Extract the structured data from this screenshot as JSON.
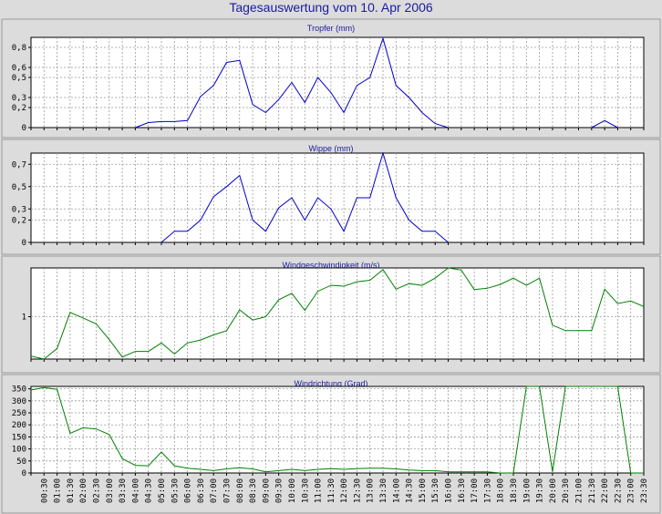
{
  "title": "Tagesauswertung vom 10. Apr 2006",
  "chart_data": [
    {
      "type": "line",
      "title": "Tropfer (mm)",
      "color": "#0000cc",
      "ylim": [
        0,
        0.9
      ],
      "yticks": [
        0,
        0.2,
        0.3,
        0.5,
        0.6,
        0.8
      ],
      "ytick_labels": [
        "0",
        "0,2",
        "0,3",
        "0,5",
        "0,6",
        "0,8"
      ],
      "x": [
        "00:00",
        "00:30",
        "01:00",
        "01:30",
        "02:00",
        "02:30",
        "03:00",
        "03:30",
        "04:00",
        "04:30",
        "05:00",
        "05:30",
        "06:00",
        "06:30",
        "07:00",
        "07:30",
        "08:00",
        "08:30",
        "09:00",
        "09:30",
        "10:00",
        "10:30",
        "11:00",
        "11:30",
        "12:00",
        "12:30",
        "13:00",
        "13:30",
        "14:00",
        "14:30",
        "15:00",
        "15:30",
        "16:00",
        "16:30",
        "17:00",
        "17:30",
        "18:00",
        "18:30",
        "19:00",
        "19:30",
        "20:00",
        "20:30",
        "21:00",
        "21:30",
        "22:00",
        "22:30",
        "23:00",
        "23:30"
      ],
      "values": [
        null,
        null,
        null,
        null,
        null,
        null,
        null,
        null,
        0,
        0.05,
        0.06,
        0.06,
        0.07,
        0.31,
        0.42,
        0.65,
        0.67,
        0.23,
        0.15,
        0.28,
        0.45,
        0.25,
        0.5,
        0.35,
        0.15,
        0.42,
        0.5,
        0.89,
        0.42,
        0.3,
        0.15,
        0.04,
        0,
        null,
        null,
        null,
        null,
        null,
        null,
        null,
        null,
        null,
        null,
        0,
        0.07,
        0,
        null,
        null
      ]
    },
    {
      "type": "line",
      "title": "Wippe (mm)",
      "color": "#0000cc",
      "ylim": [
        0,
        0.8
      ],
      "yticks": [
        0,
        0.2,
        0.3,
        0.5,
        0.7
      ],
      "ytick_labels": [
        "0",
        "0,2",
        "0,3",
        "0,5",
        "0,7"
      ],
      "x": [
        "00:00",
        "00:30",
        "01:00",
        "01:30",
        "02:00",
        "02:30",
        "03:00",
        "03:30",
        "04:00",
        "04:30",
        "05:00",
        "05:30",
        "06:00",
        "06:30",
        "07:00",
        "07:30",
        "08:00",
        "08:30",
        "09:00",
        "09:30",
        "10:00",
        "10:30",
        "11:00",
        "11:30",
        "12:00",
        "12:30",
        "13:00",
        "13:30",
        "14:00",
        "14:30",
        "15:00",
        "15:30",
        "16:00",
        "16:30",
        "17:00",
        "17:30",
        "18:00",
        "18:30",
        "19:00",
        "19:30",
        "20:00",
        "20:30",
        "21:00",
        "21:30",
        "22:00",
        "22:30",
        "23:00",
        "23:30"
      ],
      "values": [
        null,
        null,
        null,
        null,
        null,
        null,
        null,
        null,
        null,
        null,
        0,
        0.1,
        0.1,
        0.2,
        0.41,
        0.5,
        0.6,
        0.2,
        0.1,
        0.31,
        0.4,
        0.2,
        0.4,
        0.3,
        0.1,
        0.4,
        0.4,
        0.8,
        0.4,
        0.2,
        0.1,
        0.1,
        0,
        null,
        null,
        null,
        null,
        null,
        null,
        null,
        null,
        null,
        null,
        null,
        null,
        null,
        null,
        null
      ]
    },
    {
      "type": "line",
      "title": "Windgeschwindigkeit (m/s)",
      "color": "#008000",
      "ylim": [
        0,
        2.15
      ],
      "yticks": [
        1
      ],
      "ytick_labels": [
        "1"
      ],
      "x": [
        "00:00",
        "00:30",
        "01:00",
        "01:30",
        "02:00",
        "02:30",
        "03:00",
        "03:30",
        "04:00",
        "04:30",
        "05:00",
        "05:30",
        "06:00",
        "06:30",
        "07:00",
        "07:30",
        "08:00",
        "08:30",
        "09:00",
        "09:30",
        "10:00",
        "10:30",
        "11:00",
        "11:30",
        "12:00",
        "12:30",
        "13:00",
        "13:30",
        "14:00",
        "14:30",
        "15:00",
        "15:30",
        "16:00",
        "16:30",
        "17:00",
        "17:30",
        "18:00",
        "18:30",
        "19:00",
        "19:30",
        "20:00",
        "20:30",
        "21:00",
        "21:30",
        "22:00",
        "22:30",
        "23:00",
        "23:30"
      ],
      "values": [
        0.07,
        0,
        0.25,
        1.1,
        0.97,
        0.83,
        0.46,
        0.05,
        0.18,
        0.18,
        0.38,
        0.12,
        0.38,
        0.45,
        0.57,
        0.67,
        1.16,
        0.92,
        1.0,
        1.4,
        1.55,
        1.15,
        1.6,
        1.74,
        1.72,
        1.82,
        1.86,
        2.11,
        1.65,
        1.78,
        1.74,
        1.91,
        2.15,
        2.1,
        1.64,
        1.67,
        1.76,
        1.91,
        1.74,
        1.91,
        0.8,
        0.67,
        0.67,
        0.67,
        1.65,
        1.31,
        1.37,
        1.24
      ]
    },
    {
      "type": "line",
      "title": "Windrichtung (Grad)",
      "color": "#008000",
      "ylim": [
        0,
        360
      ],
      "yticks": [
        0,
        50,
        100,
        150,
        200,
        250,
        300,
        350
      ],
      "ytick_labels": [
        "0",
        "50",
        "100",
        "150",
        "200",
        "250",
        "300",
        "350"
      ],
      "x": [
        "00:00",
        "00:30",
        "01:00",
        "01:30",
        "02:00",
        "02:30",
        "03:00",
        "03:30",
        "04:00",
        "04:30",
        "05:00",
        "05:30",
        "06:00",
        "06:30",
        "07:00",
        "07:30",
        "08:00",
        "08:30",
        "09:00",
        "09:30",
        "10:00",
        "10:30",
        "11:00",
        "11:30",
        "12:00",
        "12:30",
        "13:00",
        "13:30",
        "14:00",
        "14:30",
        "15:00",
        "15:30",
        "16:00",
        "16:30",
        "17:00",
        "17:30",
        "18:00",
        "18:30",
        "19:00",
        "19:30",
        "20:00",
        "20:30",
        "21:00",
        "21:30",
        "22:00",
        "22:30",
        "23:00",
        "23:30"
      ],
      "values": [
        345,
        355,
        348,
        165,
        188,
        183,
        160,
        60,
        32,
        30,
        87,
        30,
        20,
        15,
        10,
        17,
        22,
        17,
        5,
        10,
        15,
        10,
        15,
        18,
        15,
        18,
        20,
        20,
        17,
        12,
        10,
        10,
        5,
        5,
        5,
        5,
        0,
        0,
        360,
        360,
        5,
        360,
        360,
        360,
        360,
        360,
        0,
        0
      ]
    }
  ],
  "x_tick_labels": [
    "00:30",
    "01:00",
    "01:30",
    "02:00",
    "02:30",
    "03:00",
    "03:30",
    "04:00",
    "04:30",
    "05:00",
    "05:30",
    "06:00",
    "06:30",
    "07:00",
    "07:30",
    "08:00",
    "08:30",
    "09:00",
    "09:30",
    "10:00",
    "10:30",
    "11:00",
    "11:30",
    "12:00",
    "12:30",
    "13:00",
    "13:30",
    "14:00",
    "14:30",
    "15:00",
    "15:30",
    "16:00",
    "16:30",
    "17:00",
    "17:30",
    "18:00",
    "18:30",
    "19:00",
    "19:30",
    "20:00",
    "20:30",
    "21:00",
    "21:30",
    "22:00",
    "22:30",
    "23:00",
    "23:30"
  ]
}
